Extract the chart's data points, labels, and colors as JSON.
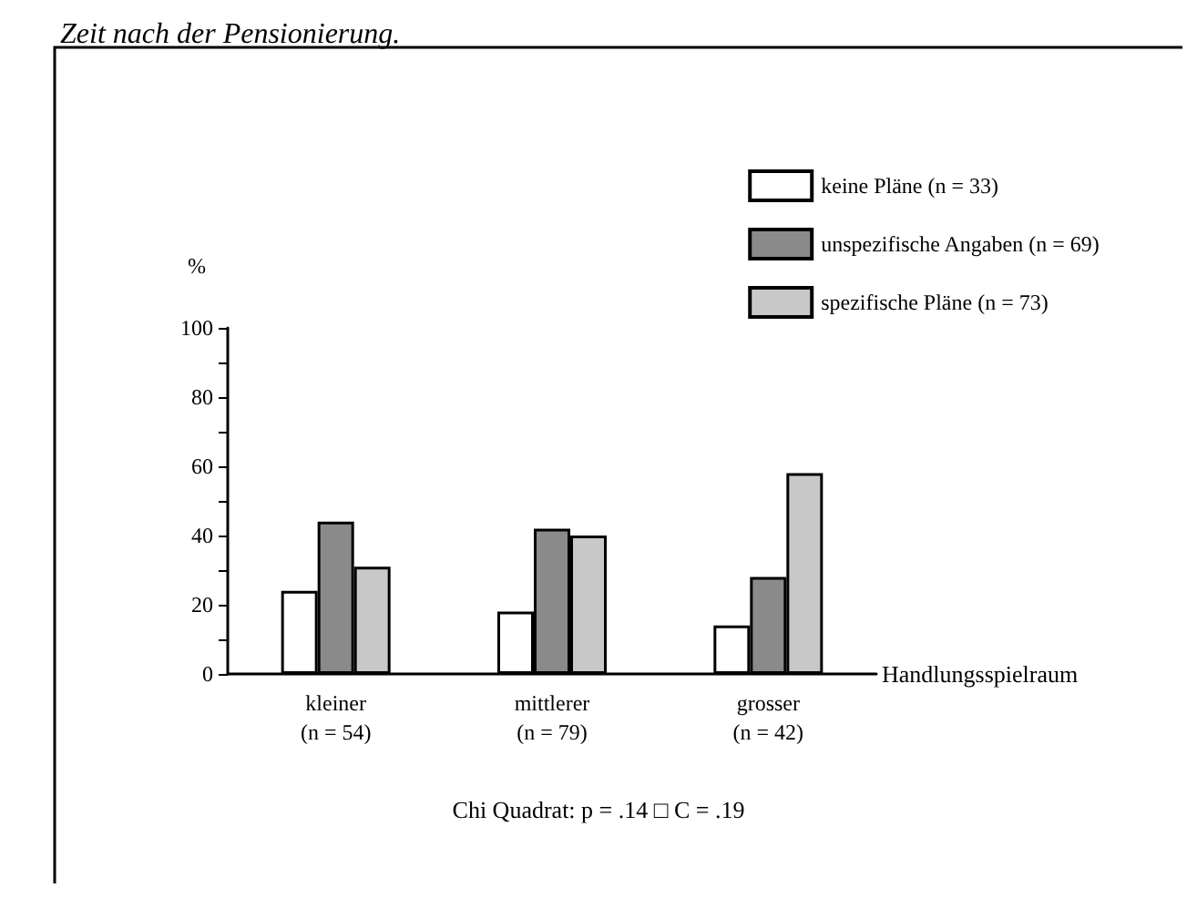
{
  "chart_data": {
    "type": "bar",
    "title": "Zeit nach der Pensionierung.",
    "categories": [
      "kleiner\n(n = 54)",
      "mittlerer\n(n = 79)",
      "grosser\n(n = 42)"
    ],
    "series": [
      {
        "name": "keine Pläne (n = 33)",
        "color": "#ffffff",
        "values": [
          24,
          18,
          14
        ]
      },
      {
        "name": "unspezifische Angaben (n = 69)",
        "color": "#8a8a8a",
        "values": [
          44,
          42,
          28
        ]
      },
      {
        "name": "spezifische Pläne (n = 73)",
        "color": "#c8c8c8",
        "values": [
          31,
          40,
          58
        ]
      }
    ],
    "xlabel": "Handlungsspielraum",
    "ylabel": "%",
    "ylim": [
      0,
      100
    ],
    "yticks": [
      0,
      {
        "value": 10,
        "label": null
      },
      20,
      {
        "value": 30,
        "label": null
      },
      40,
      {
        "value": 50,
        "label": null
      },
      60,
      {
        "value": 70,
        "label": null
      },
      80,
      {
        "value": 90,
        "label": null
      },
      100
    ],
    "annotations": [
      "Chi Quadrat: p = .14 □ C = .19"
    ],
    "legend": "top right",
    "grid": false
  }
}
